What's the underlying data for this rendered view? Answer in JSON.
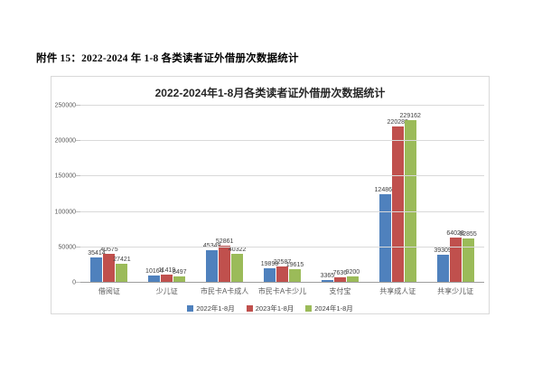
{
  "document": {
    "heading": "附件 15：2022-2024 年 1-8 各类读者证外借册次数据统计"
  },
  "chart_data": {
    "type": "bar",
    "title": "2022-2024年1-8月各类读者证外借册次数据统计",
    "categories": [
      "借阅证",
      "少儿证",
      "市民卡A卡成人",
      "市民卡A卡少儿",
      "支付宝",
      "共享成人证",
      "共享少儿证"
    ],
    "series": [
      {
        "name": "2022年1-8月",
        "color": "#4F81BD",
        "values": [
          35414,
          10164,
          45349,
          19898,
          3365,
          124864,
          39309
        ]
      },
      {
        "name": "2023年1-8月",
        "color": "#C0504D",
        "values": [
          40575,
          11419,
          52861,
          22587,
          7636,
          220283,
          64028
        ]
      },
      {
        "name": "2024年1-8月",
        "color": "#9BBB59",
        "values": [
          27421,
          8497,
          40322,
          19615,
          9200,
          229162,
          62855
        ]
      }
    ],
    "xlabel": "",
    "ylabel": "",
    "ylim": [
      0,
      250000
    ],
    "yticks": [
      0,
      50000,
      100000,
      150000,
      200000,
      250000
    ],
    "grid": true,
    "data_labels": true,
    "legend_position": "bottom",
    "colors": {
      "gridline": "#d9d9d9",
      "axis": "#9d9d9d",
      "tick_text": "#595959",
      "label_text": "#404040"
    }
  }
}
